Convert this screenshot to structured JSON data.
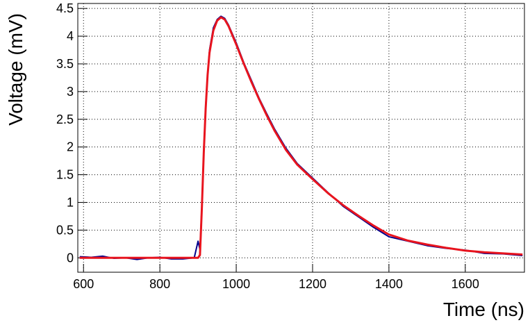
{
  "chart_data": {
    "type": "line",
    "xlabel": "Time (ns)",
    "ylabel": "Voltage (mV)",
    "x": [
      590,
      620,
      650,
      680,
      710,
      740,
      770,
      800,
      830,
      860,
      890,
      900,
      905,
      910,
      915,
      920,
      925,
      930,
      940,
      950,
      960,
      970,
      980,
      1000,
      1020,
      1040,
      1060,
      1080,
      1100,
      1130,
      1160,
      1200,
      1240,
      1280,
      1320,
      1360,
      1400,
      1450,
      1500,
      1550,
      1600,
      1650,
      1700,
      1750
    ],
    "series": [
      {
        "color": "#00008b",
        "values": [
          0.02,
          0.01,
          0.03,
          -0.01,
          0,
          -0.03,
          0,
          0.01,
          -0.02,
          -0.02,
          0,
          0.3,
          0.15,
          0.95,
          1.95,
          2.75,
          3.3,
          3.75,
          4.15,
          4.3,
          4.36,
          4.32,
          4.2,
          3.88,
          3.52,
          3.2,
          2.88,
          2.6,
          2.33,
          1.98,
          1.7,
          1.44,
          1.18,
          0.93,
          0.74,
          0.55,
          0.38,
          0.3,
          0.22,
          0.17,
          0.14,
          0.08,
          0.07,
          0.04
        ]
      },
      {
        "color": "#e8141e",
        "values": [
          0,
          0,
          0,
          0,
          0,
          0,
          0,
          0,
          0,
          0,
          0,
          0,
          0.05,
          0.9,
          1.9,
          2.7,
          3.3,
          3.7,
          4.1,
          4.28,
          4.34,
          4.3,
          4.18,
          3.85,
          3.5,
          3.17,
          2.86,
          2.57,
          2.3,
          1.95,
          1.68,
          1.42,
          1.17,
          0.95,
          0.76,
          0.58,
          0.42,
          0.31,
          0.24,
          0.18,
          0.13,
          0.1,
          0.08,
          0.06
        ]
      }
    ],
    "xlim": [
      585,
      1755
    ],
    "ylim": [
      -0.26,
      4.59
    ],
    "xticks": [
      600,
      800,
      1000,
      1200,
      1400,
      1600
    ],
    "yticks": [
      0,
      0.5,
      1,
      1.5,
      2,
      2.5,
      3,
      3.5,
      4,
      4.5
    ],
    "grid": true
  }
}
